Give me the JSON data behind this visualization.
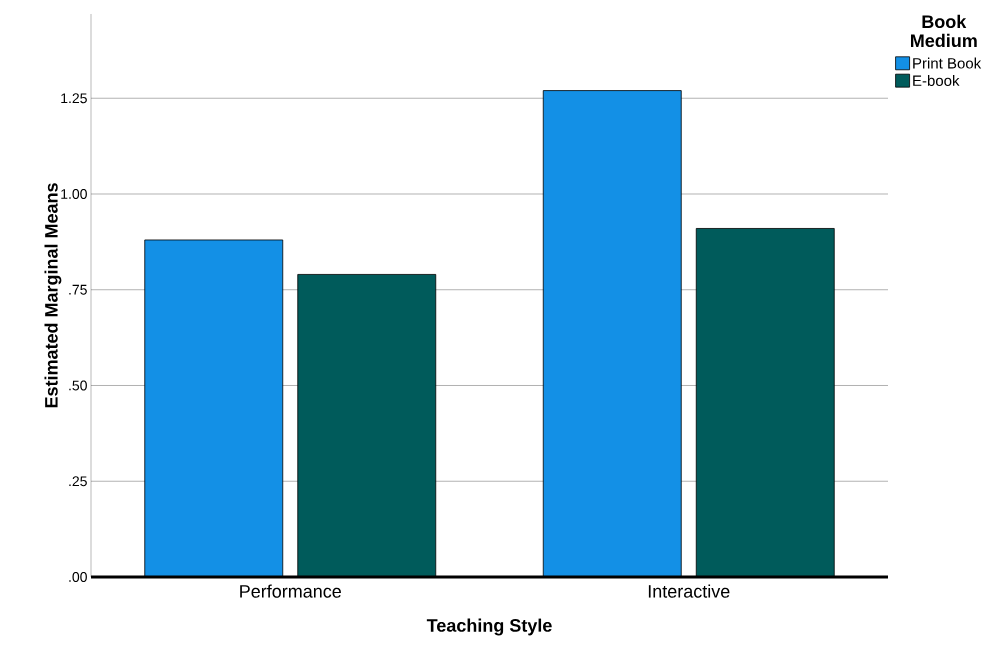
{
  "chart_data": {
    "type": "bar",
    "xlabel": "Teaching Style",
    "ylabel": "Estimated Marginal Means",
    "legend_title": "Book Medium",
    "categories": [
      "Performance",
      "Interactive"
    ],
    "series": [
      {
        "name": "Print Book",
        "color": "#1390e6",
        "values": [
          0.88,
          1.27
        ]
      },
      {
        "name": "E-book",
        "color": "#005b5b",
        "values": [
          0.79,
          0.91
        ]
      }
    ],
    "ylim": [
      0,
      1.47
    ],
    "yticks": [
      {
        "value": 0,
        "label": ".00"
      },
      {
        "value": 0.25,
        "label": ".25"
      },
      {
        "value": 0.5,
        "label": ".50"
      },
      {
        "value": 0.75,
        "label": ".75"
      },
      {
        "value": 1,
        "label": "1.00"
      },
      {
        "value": 1.25,
        "label": "1.25"
      }
    ],
    "grid": "y",
    "legend": "top right"
  }
}
